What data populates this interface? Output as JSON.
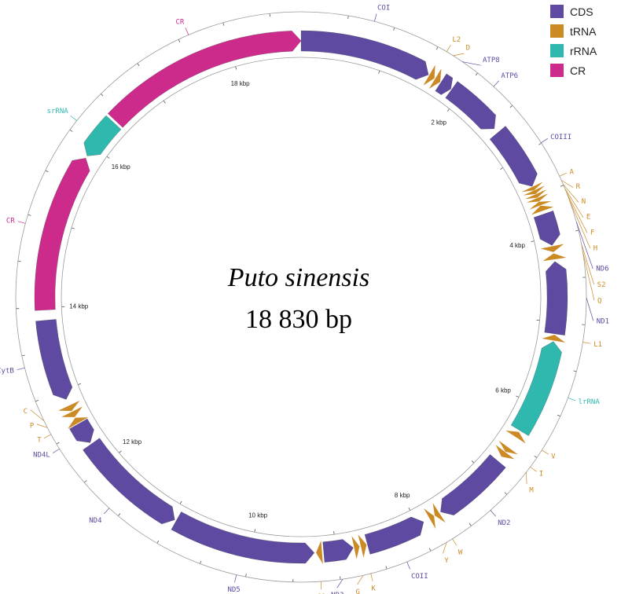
{
  "title": {
    "species": "Puto sinensis",
    "length_text": "18 830 bp"
  },
  "colors": {
    "CDS": "#5e4aa0",
    "tRNA": "#cc8a25",
    "rRNA": "#2fb8ae",
    "CR": "#cc2b8c"
  },
  "legend": [
    {
      "type": "CDS",
      "label": "CDS"
    },
    {
      "type": "tRNA",
      "label": "tRNA"
    },
    {
      "type": "rRNA",
      "label": "rRNA"
    },
    {
      "type": "CR",
      "label": "CR"
    }
  ],
  "chart_data": {
    "type": "circular-genome-map",
    "total_bp": 18830,
    "kbp_labels": [
      "2 kbp",
      "4 kbp",
      "6 kbp",
      "8 kbp",
      "10 kbp",
      "12 kbp",
      "14 kbp",
      "16 kbp",
      "18 kbp"
    ],
    "features": [
      {
        "name": "COI",
        "type": "CDS",
        "start": 0,
        "end": 1560,
        "strand": "+",
        "label": "COI"
      },
      {
        "name": "L2",
        "type": "tRNA",
        "start": 1570,
        "end": 1640,
        "strand": "+",
        "label": "L2"
      },
      {
        "name": "D",
        "type": "tRNA",
        "start": 1650,
        "end": 1720,
        "strand": "+",
        "label": "D"
      },
      {
        "name": "ATP8",
        "type": "CDS",
        "start": 1730,
        "end": 1870,
        "strand": "+",
        "label": "ATP8"
      },
      {
        "name": "ATP6",
        "type": "CDS",
        "start": 1880,
        "end": 2560,
        "strand": "+",
        "label": "ATP6"
      },
      {
        "name": "COIII",
        "type": "CDS",
        "start": 2620,
        "end": 3370,
        "strand": "+",
        "label": "COIII"
      },
      {
        "name": "A",
        "type": "tRNA",
        "start": 3375,
        "end": 3420,
        "strand": "+",
        "label": "A"
      },
      {
        "name": "R",
        "type": "tRNA",
        "start": 3422,
        "end": 3467,
        "strand": "+",
        "label": "R"
      },
      {
        "name": "N",
        "type": "tRNA",
        "start": 3470,
        "end": 3515,
        "strand": "+",
        "label": "N"
      },
      {
        "name": "E",
        "type": "tRNA",
        "start": 3518,
        "end": 3563,
        "strand": "+",
        "label": "E"
      },
      {
        "name": "F",
        "type": "tRNA",
        "start": 3566,
        "end": 3611,
        "strand": "-",
        "label": "F"
      },
      {
        "name": "H",
        "type": "tRNA",
        "start": 3615,
        "end": 3680,
        "strand": "-",
        "label": "H"
      },
      {
        "name": "ND6",
        "type": "CDS",
        "start": 3720,
        "end": 4100,
        "strand": "+",
        "label": "ND6"
      },
      {
        "name": "S2",
        "type": "tRNA",
        "start": 4110,
        "end": 4180,
        "strand": "+",
        "label": "S2"
      },
      {
        "name": "Q",
        "type": "tRNA",
        "start": 4195,
        "end": 4265,
        "strand": "-",
        "label": "Q"
      },
      {
        "name": "ND1",
        "type": "CDS",
        "start": 4290,
        "end": 5140,
        "strand": "-",
        "label": "ND1"
      },
      {
        "name": "L1",
        "type": "tRNA",
        "start": 5150,
        "end": 5220,
        "strand": "-",
        "label": "L1"
      },
      {
        "name": "lrRNA",
        "type": "rRNA",
        "start": 5230,
        "end": 6350,
        "strand": "-",
        "label": "lrRNA"
      },
      {
        "name": "V",
        "type": "tRNA",
        "start": 6370,
        "end": 6440,
        "strand": "-",
        "label": "V"
      },
      {
        "name": "I",
        "type": "tRNA",
        "start": 6590,
        "end": 6650,
        "strand": "+",
        "label": "I"
      },
      {
        "name": "M",
        "type": "tRNA",
        "start": 6655,
        "end": 6725,
        "strand": "+",
        "label": "M"
      },
      {
        "name": "ND2",
        "type": "CDS",
        "start": 6790,
        "end": 7690,
        "strand": "+",
        "label": "ND2"
      },
      {
        "name": "W",
        "type": "tRNA",
        "start": 7710,
        "end": 7770,
        "strand": "+",
        "label": "W"
      },
      {
        "name": "Y",
        "type": "tRNA",
        "start": 7780,
        "end": 7840,
        "strand": "-",
        "label": "Y"
      },
      {
        "name": "COII",
        "type": "CDS",
        "start": 7920,
        "end": 8630,
        "strand": "-",
        "label": "COII"
      },
      {
        "name": "K",
        "type": "tRNA",
        "start": 8640,
        "end": 8710,
        "strand": "-",
        "label": "K"
      },
      {
        "name": "G",
        "type": "tRNA",
        "start": 8725,
        "end": 8790,
        "strand": "-",
        "label": "G"
      },
      {
        "name": "ND3",
        "type": "CDS",
        "start": 8800,
        "end": 9150,
        "strand": "-",
        "label": "ND3"
      },
      {
        "name": "S1",
        "type": "tRNA",
        "start": 9170,
        "end": 9240,
        "strand": "+",
        "label": "S1"
      },
      {
        "name": "ND5",
        "type": "CDS",
        "start": 9260,
        "end": 10940,
        "strand": "-",
        "label": "ND5"
      },
      {
        "name": "ND4",
        "type": "CDS",
        "start": 10960,
        "end": 12290,
        "strand": "-",
        "label": "ND4"
      },
      {
        "name": "ND4L",
        "type": "CDS",
        "start": 12310,
        "end": 12570,
        "strand": "-",
        "label": "ND4L"
      },
      {
        "name": "T",
        "type": "tRNA",
        "start": 12580,
        "end": 12650,
        "strand": "+",
        "label": "T"
      },
      {
        "name": "P",
        "type": "tRNA",
        "start": 12660,
        "end": 12730,
        "strand": "-",
        "label": "P"
      },
      {
        "name": "C",
        "type": "tRNA",
        "start": 12740,
        "end": 12810,
        "strand": "-",
        "label": "C"
      },
      {
        "name": "CytB",
        "type": "CDS",
        "start": 12890,
        "end": 13850,
        "strand": "-",
        "label": "CytB"
      },
      {
        "name": "CR-a",
        "type": "CR",
        "start": 13970,
        "end": 15840,
        "strand": "+",
        "label": "CR"
      },
      {
        "name": "srRNA",
        "type": "rRNA",
        "start": 15870,
        "end": 16370,
        "strand": "-",
        "label": "srRNA"
      },
      {
        "name": "CR-b",
        "type": "CR",
        "start": 16400,
        "end": 18830,
        "strand": "+",
        "label": "CR"
      }
    ]
  }
}
